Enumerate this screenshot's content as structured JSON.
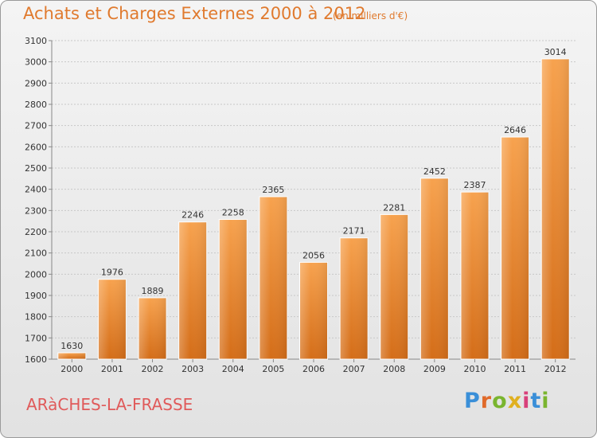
{
  "header": {
    "title": "Achats et Charges Externes 2000 à 2012",
    "subtitle": "(en milliers d'€)"
  },
  "footer": {
    "commune": "ARàCHES-LA-FRASSE",
    "logo": {
      "letters": [
        "P",
        "r",
        "o",
        "x",
        "i",
        "t",
        "i"
      ],
      "colors": [
        "#3a8fd8",
        "#e06a2a",
        "#7ab52f",
        "#e0b020",
        "#d8407a",
        "#3a8fd8",
        "#7ab52f"
      ]
    }
  },
  "chart_data": {
    "type": "bar",
    "title": "Achats et Charges Externes 2000 à 2012",
    "subtitle": "(en milliers d'€)",
    "categories": [
      "2000",
      "2001",
      "2002",
      "2003",
      "2004",
      "2005",
      "2006",
      "2007",
      "2008",
      "2009",
      "2010",
      "2011",
      "2012"
    ],
    "values": [
      1630,
      1976,
      1889,
      2246,
      2258,
      2365,
      2056,
      2171,
      2281,
      2452,
      2387,
      2646,
      3014
    ],
    "ylim": [
      1600,
      3100
    ],
    "yticks": [
      1600,
      1700,
      1800,
      1900,
      2000,
      2100,
      2200,
      2300,
      2400,
      2500,
      2600,
      2700,
      2800,
      2900,
      3000,
      3100
    ],
    "grid": true,
    "bar_color": "#f08a30"
  }
}
